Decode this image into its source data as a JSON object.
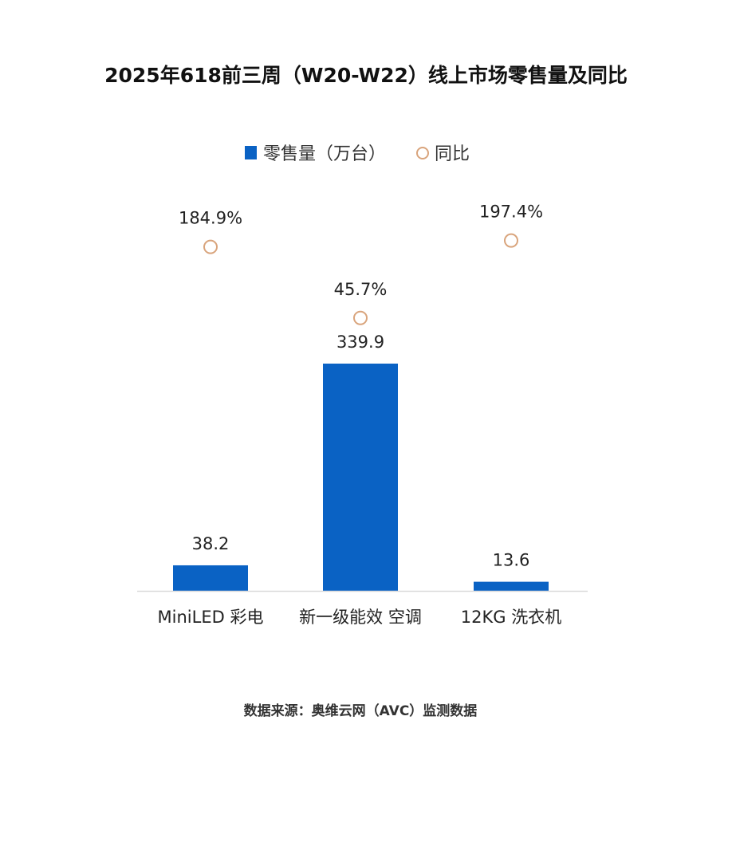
{
  "chart_data": {
    "type": "bar",
    "title": "2025年618前三周（W20-W22）线上市场零售量及同比",
    "categories": [
      "MiniLED 彩电",
      "新一级能效 空调",
      "12KG 洗衣机"
    ],
    "series": [
      {
        "name": "零售量（万台）",
        "type": "bar",
        "values": [
          38.2,
          339.9,
          13.6
        ],
        "labels": [
          "38.2",
          "339.9",
          "13.6"
        ],
        "color": "#0a62c4"
      },
      {
        "name": "同比",
        "type": "scatter",
        "axis": "secondary",
        "values": [
          184.9,
          45.7,
          197.4
        ],
        "labels": [
          "184.9%",
          "45.7%",
          "197.4%"
        ],
        "unit": "%",
        "color": "#d9a47c"
      }
    ],
    "legend_placement": "top",
    "grid": false,
    "source": "数据来源：奥维云网（AVC）监测数据"
  }
}
